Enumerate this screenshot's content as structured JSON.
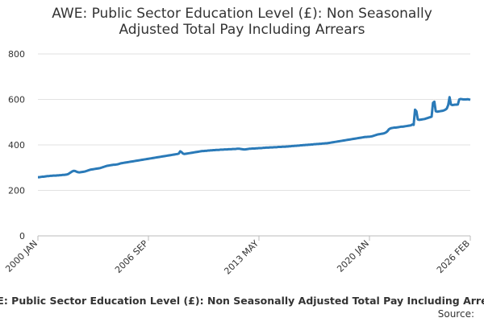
{
  "chart_data": {
    "type": "line",
    "title": "AWE: Public Sector Education Level (£): Non Seasonally Adjusted Total Pay Including Arrears",
    "footer_title": "AWE: Public Sector Education Level (£): Non Seasonally Adjusted Total Pay Including Arrears",
    "source": "Source:",
    "color": "#2a7ab8",
    "ylim": [
      0,
      800
    ],
    "yticks": [
      0,
      200,
      400,
      600,
      800
    ],
    "grid": true,
    "categories": [
      "2000 JAN",
      null,
      null,
      null,
      null,
      null,
      null,
      null,
      null,
      null,
      null,
      null,
      null,
      null,
      null,
      null,
      null,
      null,
      null,
      null,
      null,
      null,
      null,
      null,
      null,
      null,
      null,
      null,
      null,
      null,
      null,
      null,
      null,
      null,
      null,
      null,
      null,
      null,
      null,
      null,
      null,
      null,
      null,
      null,
      null,
      null,
      null,
      null,
      null,
      null,
      null,
      null,
      null,
      null,
      null,
      null,
      null,
      null,
      null,
      null,
      null,
      null,
      null,
      null,
      null,
      null,
      null,
      null,
      null,
      null,
      null,
      null,
      null,
      null,
      null,
      null,
      null,
      null,
      null,
      null,
      "2006 SEP",
      null,
      null,
      null,
      null,
      null,
      null,
      null,
      null,
      null,
      null,
      null,
      null,
      null,
      null,
      null,
      null,
      null,
      null,
      null,
      null,
      null,
      null,
      null,
      null,
      null,
      null,
      null,
      null,
      null,
      null,
      null,
      null,
      null,
      null,
      null,
      null,
      null,
      null,
      null,
      null,
      null,
      null,
      null,
      null,
      null,
      null,
      null,
      null,
      null,
      null,
      null,
      null,
      null,
      null,
      null,
      null,
      null,
      null,
      null,
      null,
      null,
      null,
      null,
      null,
      null,
      null,
      null,
      null,
      null,
      null,
      null,
      null,
      null,
      null,
      null,
      null,
      null,
      null,
      null,
      "2013 MAY",
      null,
      null,
      null,
      null,
      null,
      null,
      null,
      null,
      null,
      null,
      null,
      null,
      null,
      null,
      null,
      null,
      null,
      null,
      null,
      null,
      null,
      null,
      null,
      null,
      null,
      null,
      null,
      null,
      null,
      null,
      null,
      null,
      null,
      null,
      null,
      null,
      null,
      null,
      null,
      null,
      null,
      null,
      null,
      null,
      null,
      null,
      null,
      null,
      null,
      null,
      null,
      null,
      null,
      null,
      null,
      null,
      null,
      null,
      null,
      null,
      null,
      null,
      null,
      null,
      null,
      null,
      null,
      null,
      null,
      null,
      null,
      null,
      null,
      null,
      null,
      null,
      null,
      null,
      null,
      "2020 JAN",
      null,
      null,
      null,
      null,
      null,
      null,
      null,
      null,
      null,
      null,
      null,
      null,
      null,
      null,
      null,
      null,
      null,
      null,
      null,
      null,
      null,
      null,
      null,
      null,
      null,
      null,
      null,
      null,
      null,
      null,
      null,
      null,
      null,
      null,
      null,
      null,
      null,
      null,
      null,
      null,
      null,
      null,
      null,
      null,
      null,
      null,
      null,
      null,
      null,
      null,
      null,
      null,
      null,
      null,
      null,
      null,
      null,
      null,
      null,
      null,
      null,
      null,
      null,
      null,
      null,
      null,
      null,
      null,
      null,
      null,
      null,
      null,
      "2026 FEB"
    ],
    "values": [
      258,
      258,
      259,
      260,
      260,
      261,
      262,
      263,
      263,
      264,
      264,
      265,
      265,
      265,
      266,
      266,
      267,
      267,
      268,
      268,
      269,
      270,
      272,
      276,
      280,
      284,
      286,
      285,
      282,
      280,
      279,
      280,
      281,
      282,
      283,
      285,
      287,
      289,
      291,
      292,
      293,
      294,
      295,
      296,
      297,
      298,
      300,
      302,
      304,
      306,
      308,
      309,
      310,
      311,
      312,
      313,
      313,
      314,
      315,
      317,
      319,
      320,
      321,
      322,
      323,
      324,
      325,
      326,
      327,
      328,
      329,
      330,
      331,
      332,
      333,
      334,
      335,
      336,
      337,
      338,
      339,
      340,
      341,
      342,
      343,
      344,
      345,
      346,
      347,
      348,
      349,
      350,
      351,
      352,
      353,
      354,
      355,
      356,
      357,
      358,
      359,
      360,
      362,
      372,
      368,
      362,
      360,
      361,
      362,
      363,
      364,
      365,
      366,
      367,
      368,
      369,
      370,
      371,
      372,
      373,
      373,
      374,
      374,
      375,
      375,
      376,
      376,
      377,
      377,
      378,
      378,
      378,
      379,
      379,
      379,
      380,
      380,
      380,
      381,
      381,
      381,
      382,
      382,
      382,
      383,
      383,
      383,
      382,
      381,
      380,
      380,
      381,
      382,
      383,
      383,
      384,
      384,
      384,
      385,
      385,
      386,
      386,
      386,
      387,
      387,
      388,
      388,
      388,
      389,
      389,
      389,
      390,
      390,
      390,
      391,
      391,
      391,
      392,
      392,
      392,
      393,
      393,
      394,
      394,
      395,
      395,
      396,
      396,
      397,
      397,
      398,
      398,
      399,
      399,
      400,
      400,
      401,
      401,
      402,
      402,
      403,
      403,
      404,
      404,
      405,
      405,
      406,
      406,
      407,
      407,
      408,
      409,
      410,
      411,
      412,
      413,
      414,
      415,
      416,
      417,
      418,
      419,
      420,
      421,
      422,
      423,
      424,
      425,
      426,
      427,
      428,
      429,
      430,
      431,
      432,
      433,
      434,
      435,
      435,
      436,
      436,
      437,
      438,
      440,
      442,
      444,
      446,
      447,
      448,
      449,
      450,
      452,
      455,
      460,
      468,
      472,
      474,
      475,
      476,
      476,
      477,
      478,
      479,
      480,
      480,
      481,
      482,
      483,
      484,
      485,
      486,
      490,
      488,
      555,
      548,
      512,
      510,
      511,
      512,
      513,
      514,
      516,
      518,
      520,
      522,
      524,
      585,
      590,
      548,
      546,
      547,
      548,
      549,
      550,
      552,
      555,
      560,
      575,
      610,
      578,
      575,
      576,
      577,
      577,
      578,
      600,
      602,
      601,
      600,
      600,
      600,
      601,
      600,
      598
    ]
  }
}
